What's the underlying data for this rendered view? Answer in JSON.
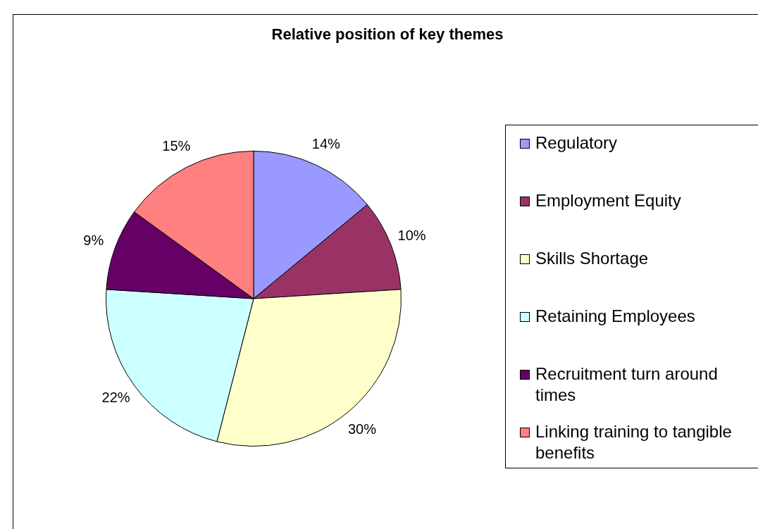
{
  "chart_data": {
    "type": "pie",
    "title": "Relative position of key themes",
    "categories": [
      "Regulatory",
      "Employment Equity",
      "Skills Shortage",
      "Retaining Employees",
      "Recruitment turn around times",
      "Linking training to tangible benefits"
    ],
    "values": [
      14,
      10,
      30,
      22,
      9,
      15
    ],
    "colors": [
      "#9999ff",
      "#993366",
      "#ffffcc",
      "#ccffff",
      "#660066",
      "#ff8080"
    ],
    "value_labels": [
      "14%",
      "10%",
      "30%",
      "22%",
      "9%",
      "15%"
    ],
    "legend": "right"
  }
}
